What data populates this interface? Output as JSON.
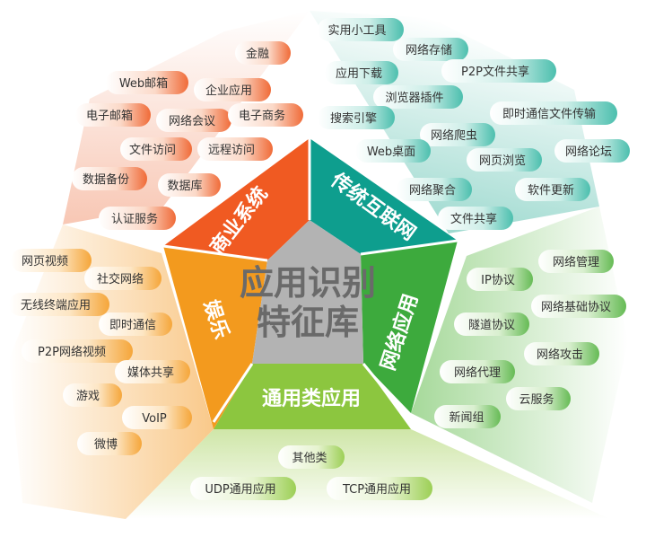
{
  "center": {
    "line1": "应用识别",
    "line2": "特征库"
  },
  "colors": {
    "business": "#f05a22",
    "internet": "#0e9e8e",
    "network": "#3daa3d",
    "general": "#8cc63f",
    "entertainment": "#f39a1e",
    "center": "#b3b3b3"
  },
  "segments": {
    "business": "商业系统",
    "internet": "传统互联网",
    "network": "网络应用",
    "general": "通用类应用",
    "entertainment": "娱乐"
  },
  "business_items": [
    "金融",
    "Web邮箱",
    "企业应用",
    "电子邮箱",
    "网络会议",
    "电子商务",
    "文件访问",
    "远程访问",
    "数据备份",
    "数据库",
    "认证服务"
  ],
  "internet_items": [
    "实用小工具",
    "网络存储",
    "应用下载",
    "P2P文件共享",
    "浏览器插件",
    "搜索引擎",
    "即时通信文件传输",
    "网络爬虫",
    "Web桌面",
    "网络论坛",
    "网页浏览",
    "网络聚合",
    "软件更新",
    "文件共享"
  ],
  "network_items": [
    "IP协议",
    "网络管理",
    "网络基础协议",
    "隧道协议",
    "网络攻击",
    "网络代理",
    "云服务",
    "新闻组"
  ],
  "general_items": [
    "其他类",
    "UDP通用应用",
    "TCP通用应用"
  ],
  "entertainment_items": [
    "网页视频",
    "社交网络",
    "无线终端应用",
    "即时通信",
    "P2P网络视频",
    "媒体共享",
    "游戏",
    "VoIP",
    "微博"
  ]
}
